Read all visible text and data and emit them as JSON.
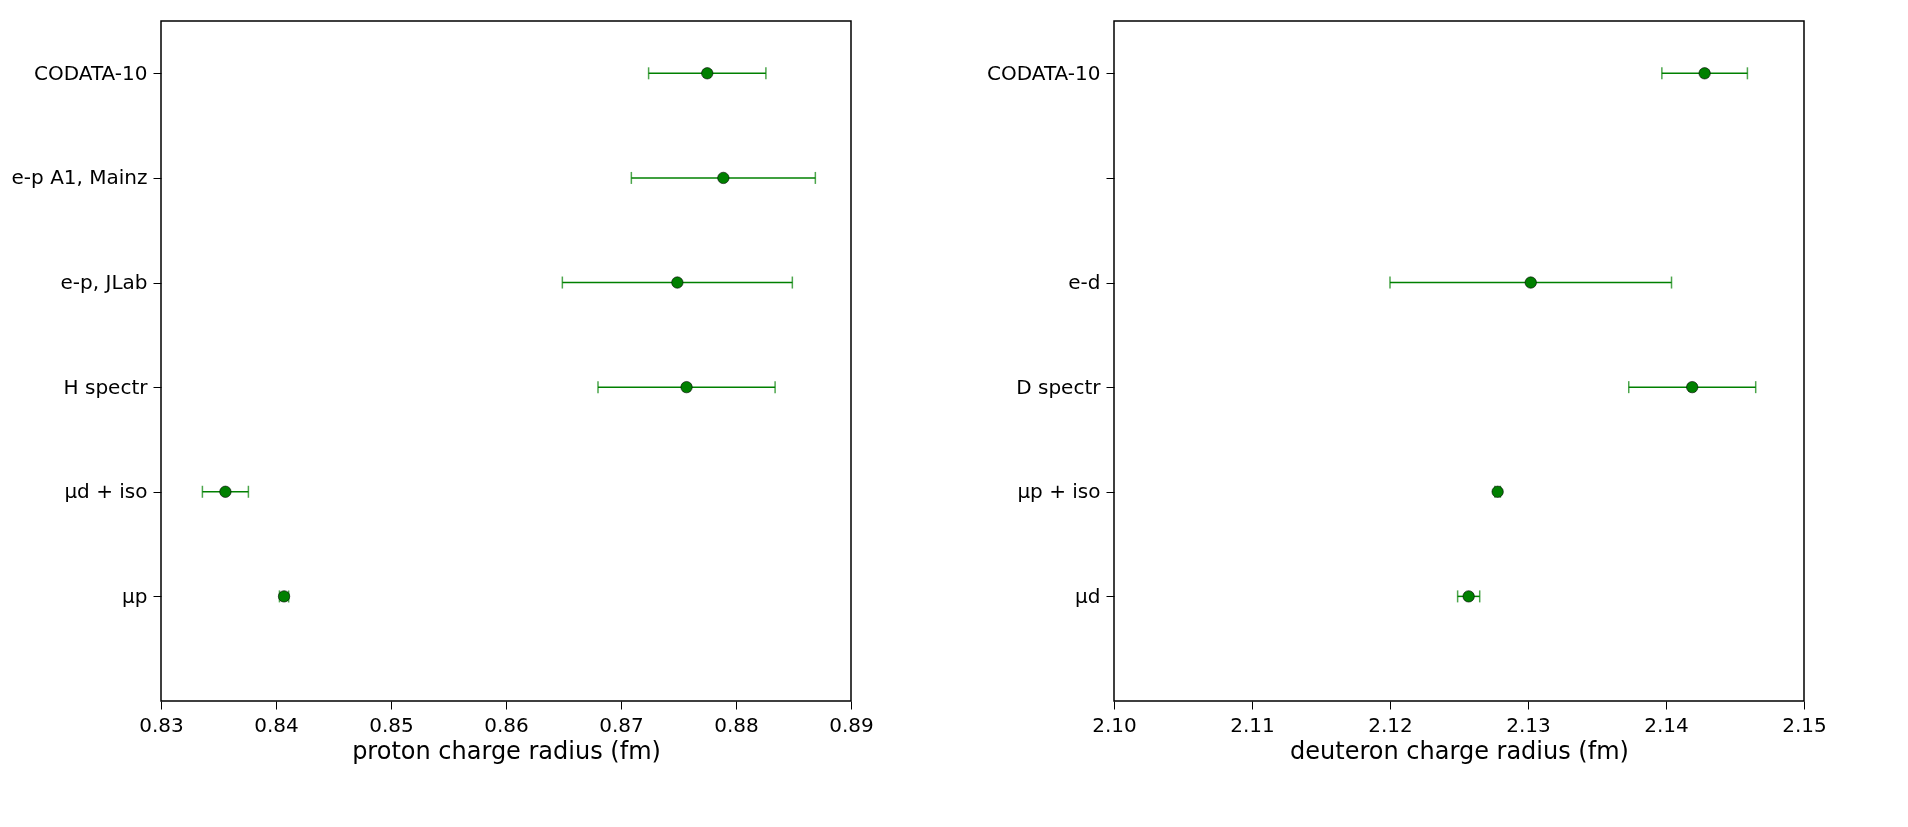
{
  "chart_data": [
    {
      "type": "scatter",
      "orientation": "horizontal",
      "xlabel": "proton charge radius (fm)",
      "categories": [
        "CODATA-10",
        "e-p A1, Mainz",
        "e-p, JLab",
        "H spectr",
        "μd + iso",
        "μp"
      ],
      "series": [
        {
          "color": "#008000",
          "values": [
            0.8775,
            0.8789,
            0.8749,
            0.8757,
            0.8356,
            0.8407
          ],
          "errors": [
            0.0051,
            0.008,
            0.01,
            0.0077,
            0.002,
            0.0004
          ]
        }
      ],
      "xlim": [
        0.83,
        0.89
      ],
      "xticks": [
        0.83,
        0.84,
        0.85,
        0.86,
        0.87,
        0.88,
        0.89
      ],
      "marker": "circle",
      "grid": false
    },
    {
      "type": "scatter",
      "orientation": "horizontal",
      "xlabel": "deuteron charge radius (fm)",
      "categories": [
        "CODATA-10",
        null,
        "e-d",
        "D spectr",
        "μp + iso",
        "μd"
      ],
      "series": [
        {
          "color": "#008000",
          "values": [
            2.1428,
            null,
            2.1302,
            2.1419,
            2.1278,
            2.1257
          ],
          "errors": [
            0.0031,
            null,
            0.0102,
            0.0046,
            0.0002,
            0.0008
          ]
        }
      ],
      "xlim": [
        2.1,
        2.15
      ],
      "xticks": [
        {
          "value": 2.1,
          "label": "2.10"
        },
        2.11,
        2.12,
        2.13,
        2.14,
        2.15
      ],
      "marker": "circle",
      "grid": false
    }
  ]
}
